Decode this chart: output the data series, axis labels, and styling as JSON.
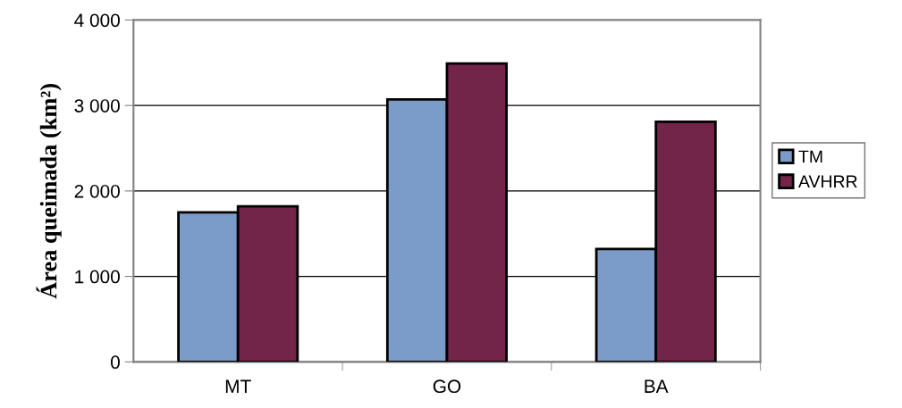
{
  "chart_data": {
    "type": "bar",
    "ylabel": "Área queimada (km²)",
    "categories": [
      "MT",
      "GO",
      "BA"
    ],
    "series": [
      {
        "name": "TM",
        "color": "#7b9cc8",
        "values": [
          1750,
          3070,
          1320
        ]
      },
      {
        "name": "AVHRR",
        "color": "#722449",
        "values": [
          1820,
          3490,
          2810
        ]
      }
    ],
    "ylim": [
      0,
      4000
    ],
    "yticks": [
      {
        "value": 0,
        "label": "0"
      },
      {
        "value": 1000,
        "label": "1 000"
      },
      {
        "value": 2000,
        "label": "2 000"
      },
      {
        "value": 3000,
        "label": "3 000"
      },
      {
        "value": 4000,
        "label": "4 000"
      }
    ],
    "grid": "y",
    "legend": "right"
  }
}
